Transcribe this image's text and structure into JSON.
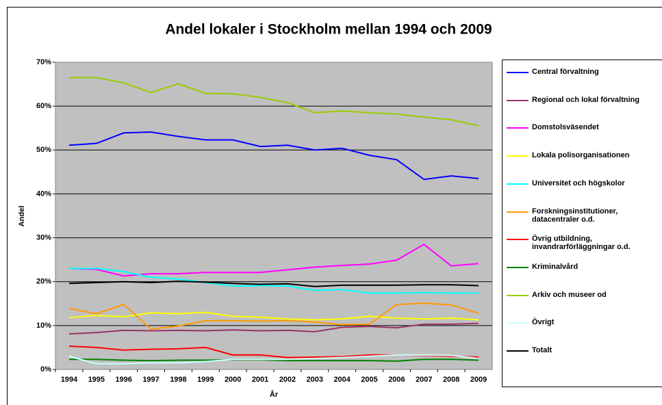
{
  "chart_data": {
    "type": "line",
    "title": "Andel lokaler i Stockholm mellan 1994 och 2009",
    "x_label": "År",
    "y_label": "Andel",
    "categories": [
      "1994",
      "1995",
      "1996",
      "1997",
      "1998",
      "1999",
      "2000",
      "2001",
      "2002",
      "2003",
      "2004",
      "2005",
      "2006",
      "2007",
      "2008",
      "2009"
    ],
    "ylim": [
      0,
      70
    ],
    "yticks": [
      {
        "value": 0,
        "label": "0%"
      },
      {
        "value": 10,
        "label": "10%"
      },
      {
        "value": 20,
        "label": "20%"
      },
      {
        "value": 30,
        "label": "30%"
      },
      {
        "value": 40,
        "label": "40%"
      },
      {
        "value": 50,
        "label": "50%"
      },
      {
        "value": 60,
        "label": "60%"
      },
      {
        "value": 70,
        "label": "70%"
      }
    ],
    "grid": true,
    "plot_background": "#c0c0c0",
    "legend": "right",
    "series": [
      {
        "name": "Central förvaltning",
        "color": "#0000ff",
        "values": [
          51.1,
          51.5,
          53.9,
          54.1,
          53.1,
          52.3,
          52.3,
          50.8,
          51.1,
          50.0,
          50.4,
          48.8,
          47.8,
          43.3,
          44.1,
          43.5
        ]
      },
      {
        "name": "Regional och lokal förvaltning",
        "color": "#993366",
        "values": [
          8.1,
          8.4,
          8.9,
          8.8,
          8.9,
          8.8,
          9.0,
          8.8,
          8.9,
          8.6,
          9.6,
          9.8,
          9.5,
          10.3,
          10.3,
          10.5
        ]
      },
      {
        "name": "Domstolsväsendet",
        "color": "#ff00ff",
        "values": [
          23.0,
          22.8,
          21.3,
          21.8,
          21.8,
          22.1,
          22.1,
          22.1,
          22.7,
          23.3,
          23.7,
          24.0,
          24.9,
          28.5,
          23.6,
          24.1
        ]
      },
      {
        "name": "Lokala polisorganisationen",
        "color": "#ffff00",
        "values": [
          11.8,
          12.3,
          12.0,
          12.9,
          12.7,
          13.0,
          12.1,
          11.9,
          11.5,
          11.3,
          11.5,
          12.1,
          11.7,
          11.5,
          11.7,
          11.3
        ]
      },
      {
        "name": "Universitet och högskolor",
        "color": "#00ffff",
        "values": [
          23.0,
          23.0,
          22.3,
          21.0,
          20.6,
          19.8,
          19.0,
          19.1,
          19.0,
          18.0,
          18.2,
          17.4,
          17.4,
          17.5,
          17.4,
          17.4
        ]
      },
      {
        "name": "Forskningsinstitutioner, datacentraler o.d.",
        "color": "#ff9900",
        "values": [
          13.9,
          12.7,
          14.8,
          9.2,
          9.9,
          11.1,
          11.1,
          11.0,
          11.1,
          10.8,
          10.2,
          10.3,
          14.8,
          15.1,
          14.7,
          12.8
        ]
      },
      {
        "name": "Övrig utbildning, invandrarförläggningar o.d.",
        "color": "#ff0000",
        "values": [
          5.3,
          5.0,
          4.4,
          4.6,
          4.7,
          5.0,
          3.3,
          3.3,
          2.7,
          2.8,
          2.9,
          3.3,
          3.3,
          3.2,
          3.0,
          2.8
        ]
      },
      {
        "name": "Kriminalvård",
        "color": "#008000",
        "values": [
          2.3,
          2.3,
          2.1,
          2.0,
          2.1,
          2.1,
          2.2,
          2.2,
          2.0,
          2.0,
          2.0,
          2.0,
          1.9,
          2.3,
          2.3,
          2.1
        ]
      },
      {
        "name": "Arkiv och museer od",
        "color": "#99cc00",
        "values": [
          66.5,
          66.5,
          65.3,
          63.1,
          65.1,
          62.9,
          62.8,
          62.0,
          60.8,
          58.5,
          58.9,
          58.5,
          58.2,
          57.5,
          56.9,
          55.5
        ]
      },
      {
        "name": "Övrigt",
        "color": "#ccffff",
        "values": [
          3.0,
          1.3,
          1.3,
          1.5,
          1.5,
          1.8,
          2.3,
          2.3,
          2.3,
          2.5,
          2.7,
          3.0,
          3.3,
          3.3,
          3.2,
          2.5
        ]
      },
      {
        "name": "Totalt",
        "color": "#000000",
        "values": [
          19.6,
          19.8,
          20.0,
          19.8,
          20.1,
          19.9,
          19.6,
          19.4,
          19.5,
          18.9,
          19.2,
          19.2,
          19.2,
          19.3,
          19.3,
          19.1
        ]
      }
    ]
  }
}
